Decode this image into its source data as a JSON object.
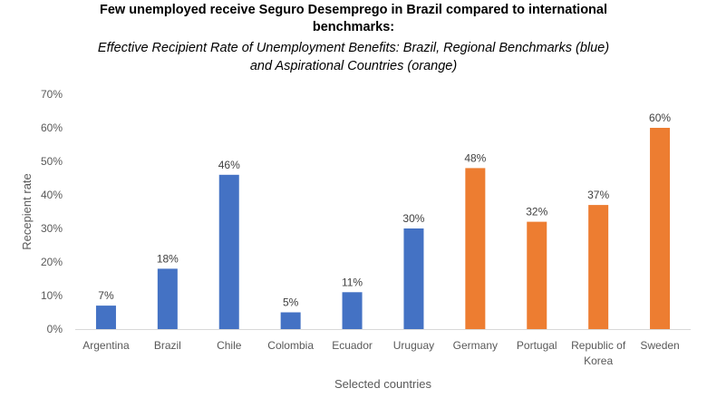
{
  "chart_data": {
    "type": "bar",
    "title_lines": [
      "Few unemployed receive Seguro Desemprego in Brazil compared to international",
      "benchmarks:"
    ],
    "subtitle_lines": [
      "Effective Recipient Rate of Unemployment Benefits: Brazil, Regional Benchmarks (blue)",
      "and Aspirational Countries (orange)"
    ],
    "xlabel": "Selected countries",
    "ylabel": "Recepient rate",
    "ylim": [
      0,
      70
    ],
    "yticks": [
      "0%",
      "10%",
      "20%",
      "30%",
      "40%",
      "50%",
      "60%",
      "70%"
    ],
    "grid": false,
    "categories": [
      "Argentina",
      "Brazil",
      "Chile",
      "Colombia",
      "Ecuador",
      "Uruguay",
      "Germany",
      "Portugal",
      "Republic of Korea",
      "Sweden"
    ],
    "category_lines": [
      [
        "Argentina"
      ],
      [
        "Brazil"
      ],
      [
        "Chile"
      ],
      [
        "Colombia"
      ],
      [
        "Ecuador"
      ],
      [
        "Uruguay"
      ],
      [
        "Germany"
      ],
      [
        "Portugal"
      ],
      [
        "Republic of",
        "Korea"
      ],
      [
        "Sweden"
      ]
    ],
    "values": [
      7,
      18,
      46,
      5,
      11,
      30,
      48,
      32,
      37,
      60
    ],
    "value_labels": [
      "7%",
      "18%",
      "46%",
      "5%",
      "11%",
      "30%",
      "48%",
      "32%",
      "37%",
      "60%"
    ],
    "bar_colors": [
      "#4472C4",
      "#4472C4",
      "#4472C4",
      "#4472C4",
      "#4472C4",
      "#4472C4",
      "#ED7D31",
      "#ED7D31",
      "#ED7D31",
      "#ED7D31"
    ],
    "axis_color": "#D9D9D9"
  }
}
